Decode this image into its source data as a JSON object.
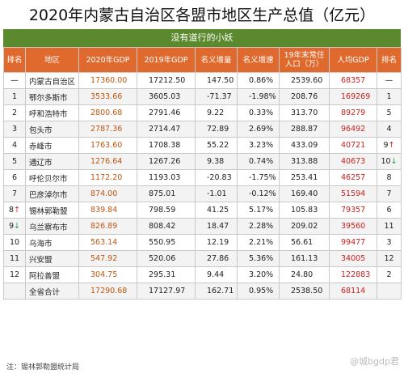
{
  "title": "2020年内蒙古自治区各盟市地区生产总值（亿元）",
  "banner": "没有道行的小妖",
  "headers": [
    "排名",
    "地区",
    "2020年GDP",
    "2019年GDP",
    "名义增量",
    "名义增速",
    "19年末常住人口（万）",
    "人均GDP",
    "排名"
  ],
  "rows": [
    {
      "rank": "—",
      "region": "内蒙古自治区",
      "gdp2020": "17360.00",
      "gdp2019": "17212.50",
      "increase": "147.50",
      "growth": "0.86%",
      "population": "2539.60",
      "per_capita": "68357",
      "rank2": "—",
      "rank2_arrow": ""
    },
    {
      "rank": "1",
      "region": "鄂尔多斯市",
      "gdp2020": "3533.66",
      "gdp2019": "3605.03",
      "increase": "-71.37",
      "growth": "-1.98%",
      "population": "208.76",
      "per_capita": "169269",
      "rank2": "1",
      "rank2_arrow": ""
    },
    {
      "rank": "2",
      "region": "呼和浩特市",
      "gdp2020": "2800.68",
      "gdp2019": "2791.46",
      "increase": "9.22",
      "growth": "0.33%",
      "population": "313.70",
      "per_capita": "89279",
      "rank2": "5",
      "rank2_arrow": ""
    },
    {
      "rank": "3",
      "region": "包头市",
      "gdp2020": "2787.36",
      "gdp2019": "2714.47",
      "increase": "72.89",
      "growth": "2.69%",
      "population": "288.87",
      "per_capita": "96492",
      "rank2": "4",
      "rank2_arrow": ""
    },
    {
      "rank": "4",
      "region": "赤峰市",
      "gdp2020": "1763.60",
      "gdp2019": "1708.38",
      "increase": "55.22",
      "growth": "3.23%",
      "population": "433.09",
      "per_capita": "40721",
      "rank2": "9",
      "rank2_arrow": "↑"
    },
    {
      "rank": "5",
      "region": "通辽市",
      "gdp2020": "1276.64",
      "gdp2019": "1267.26",
      "increase": "9.38",
      "growth": "0.74%",
      "population": "313.88",
      "per_capita": "40673",
      "rank2": "10",
      "rank2_arrow": "↓"
    },
    {
      "rank": "6",
      "region": "呼伦贝尔市",
      "gdp2020": "1172.20",
      "gdp2019": "1193.03",
      "increase": "-20.83",
      "growth": "-1.75%",
      "population": "253.41",
      "per_capita": "46257",
      "rank2": "8",
      "rank2_arrow": ""
    },
    {
      "rank": "7",
      "region": "巴彦淖尔市",
      "gdp2020": "874.00",
      "gdp2019": "875.01",
      "increase": "-1.01",
      "growth": "-0.12%",
      "population": "169.40",
      "per_capita": "51594",
      "rank2": "7",
      "rank2_arrow": ""
    },
    {
      "rank": "8",
      "rank_arrow": "↑",
      "region": "锡林郭勒盟",
      "gdp2020": "839.84",
      "gdp2019": "798.59",
      "increase": "41.25",
      "growth": "5.17%",
      "population": "105.83",
      "per_capita": "79357",
      "rank2": "6",
      "rank2_arrow": ""
    },
    {
      "rank": "9",
      "rank_arrow": "↓",
      "region": "乌兰察布市",
      "gdp2020": "826.89",
      "gdp2019": "808.42",
      "increase": "18.47",
      "growth": "2.28%",
      "population": "209.02",
      "per_capita": "39560",
      "rank2": "11",
      "rank2_arrow": ""
    },
    {
      "rank": "10",
      "region": "乌海市",
      "gdp2020": "563.14",
      "gdp2019": "550.95",
      "increase": "12.19",
      "growth": "2.21%",
      "population": "56.61",
      "per_capita": "99477",
      "rank2": "3",
      "rank2_arrow": ""
    },
    {
      "rank": "11",
      "region": "兴安盟",
      "gdp2020": "547.92",
      "gdp2019": "520.06",
      "increase": "27.86",
      "growth": "5.36%",
      "population": "161.13",
      "per_capita": "34005",
      "rank2": "12",
      "rank2_arrow": ""
    },
    {
      "rank": "12",
      "region": "阿拉善盟",
      "gdp2020": "304.75",
      "gdp2019": "295.31",
      "increase": "9.44",
      "growth": "3.20%",
      "population": "24.80",
      "per_capita": "122883",
      "rank2": "2",
      "rank2_arrow": ""
    },
    {
      "rank": "",
      "region": "全省合计",
      "gdp2020": "17290.68",
      "gdp2019": "17127.97",
      "increase": "162.71",
      "growth": "0.95%",
      "population": "2538.50",
      "per_capita": "68114",
      "rank2": "",
      "rank2_arrow": ""
    }
  ],
  "footer": "注：锡林郭勒盟统计局",
  "watermark": "@城bgdp君"
}
